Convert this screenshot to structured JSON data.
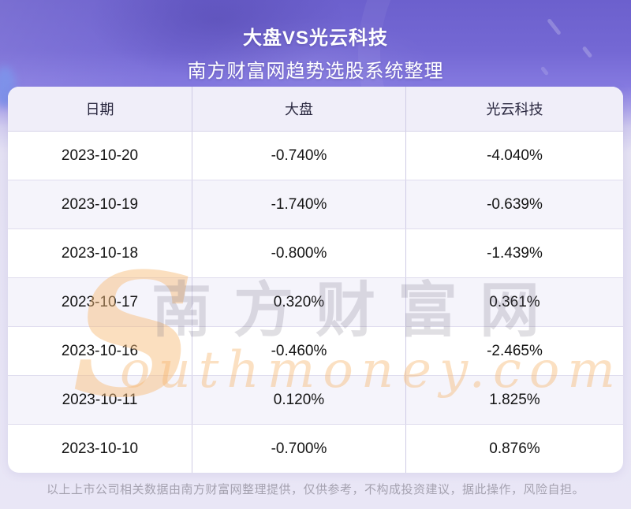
{
  "header": {
    "title": "大盘VS光云科技",
    "subtitle": "南方财富网趋势选股系统整理"
  },
  "table": {
    "columns": [
      "日期",
      "大盘",
      "光云科技"
    ],
    "rows": [
      {
        "date": "2023-10-20",
        "market": "-0.740%",
        "stock": "-4.040%"
      },
      {
        "date": "2023-10-19",
        "market": "-1.740%",
        "stock": "-0.639%"
      },
      {
        "date": "2023-10-18",
        "market": "-0.800%",
        "stock": "-1.439%"
      },
      {
        "date": "2023-10-17",
        "market": "0.320%",
        "stock": "0.361%"
      },
      {
        "date": "2023-10-16",
        "market": "-0.460%",
        "stock": "-2.465%"
      },
      {
        "date": "2023-10-11",
        "market": "0.120%",
        "stock": "1.825%"
      },
      {
        "date": "2023-10-10",
        "market": "-0.700%",
        "stock": "0.876%"
      }
    ]
  },
  "watermark": {
    "swoosh": "S",
    "chinese": "南方财富网",
    "english": "outhmoney.com"
  },
  "footer": {
    "disclaimer": "以上上市公司相关数据由南方财富网整理提供，仅供参考，不构成投资建议，据此操作，风险自担。"
  },
  "colors": {
    "header_purple_top": "#6c60cd",
    "header_purple_bottom": "#857ae0",
    "page_light": "#e9e6f6",
    "table_header_bg": "#f0eef9",
    "row_alt_bg": "#f5f4fb",
    "border": "#cfcbe5",
    "watermark_orange": "#f5b66e",
    "footer_text": "#a5a2b0"
  }
}
